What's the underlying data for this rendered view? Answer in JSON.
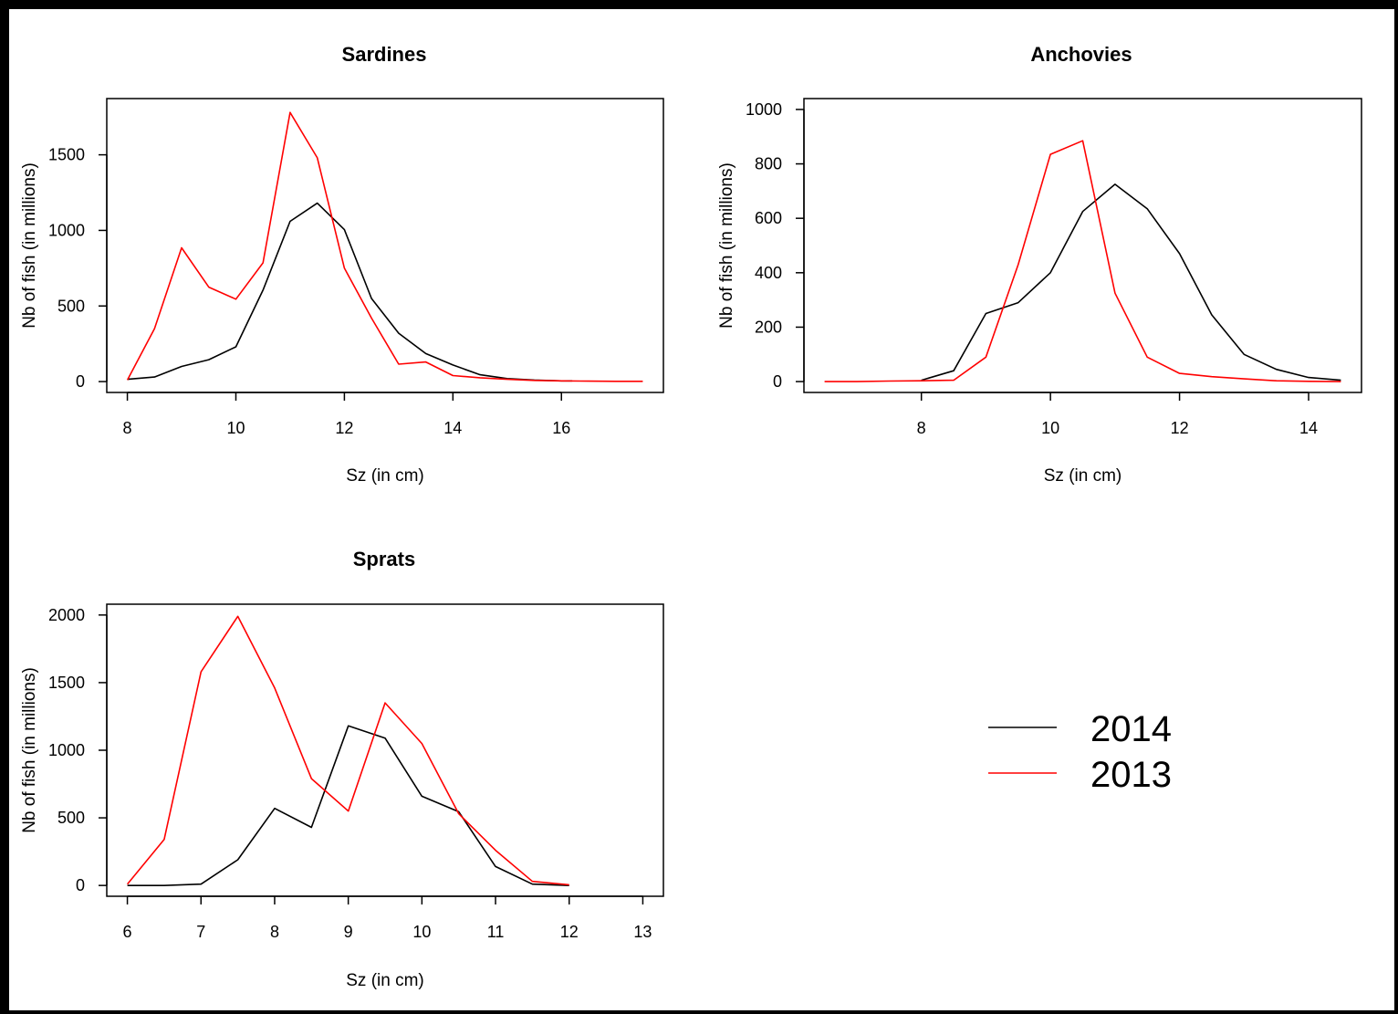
{
  "colors": {
    "2014": "#000000",
    "2013": "#ff0000"
  },
  "legend": {
    "placement": "bottom-right",
    "entries": [
      {
        "label": "2014",
        "color": "#000000"
      },
      {
        "label": "2013",
        "color": "#ff0000"
      }
    ]
  },
  "chart_data": [
    {
      "type": "line",
      "title": "Sardines",
      "xlabel": "Sz (in cm)",
      "ylabel": "Nb of fish (in millions)",
      "xlim": [
        8,
        17.5
      ],
      "ylim": [
        0,
        1800
      ],
      "xticks": [
        8,
        10,
        12,
        14,
        16
      ],
      "yticks": [
        0,
        500,
        1000,
        1500
      ],
      "series": [
        {
          "name": "2014",
          "color": "#000000",
          "x": [
            8,
            8.5,
            9,
            9.5,
            10,
            10.5,
            11,
            11.5,
            12,
            12.5,
            13,
            13.5,
            14,
            14.5,
            15,
            15.5,
            16,
            16.2
          ],
          "y": [
            15,
            30,
            100,
            145,
            230,
            605,
            1060,
            1180,
            1005,
            550,
            320,
            185,
            110,
            45,
            20,
            10,
            5,
            5
          ]
        },
        {
          "name": "2013",
          "color": "#ff0000",
          "x": [
            8,
            8.5,
            9,
            9.5,
            10,
            10.5,
            11,
            11.5,
            12,
            12.5,
            13,
            13.5,
            14,
            14.5,
            15,
            15.5,
            16,
            16.5,
            17,
            17.5
          ],
          "y": [
            10,
            350,
            885,
            625,
            545,
            785,
            1780,
            1480,
            750,
            420,
            115,
            130,
            40,
            25,
            15,
            8,
            5,
            3,
            2,
            2
          ]
        }
      ]
    },
    {
      "type": "line",
      "title": "Anchovies",
      "xlabel": "Sz (in cm)",
      "ylabel": "Nb of fish (in millions)",
      "xlim": [
        6.5,
        14.5
      ],
      "ylim": [
        0,
        1000
      ],
      "xticks": [
        8,
        10,
        12,
        14
      ],
      "yticks": [
        0,
        200,
        400,
        600,
        800,
        1000
      ],
      "series": [
        {
          "name": "2014",
          "color": "#000000",
          "x": [
            8,
            8.5,
            9,
            9.5,
            10,
            10.5,
            11,
            11.5,
            12,
            12.5,
            13,
            13.5,
            14,
            14.5
          ],
          "y": [
            5,
            40,
            250,
            290,
            400,
            625,
            725,
            635,
            470,
            245,
            100,
            45,
            15,
            5
          ]
        },
        {
          "name": "2013",
          "color": "#ff0000",
          "x": [
            6.5,
            7,
            7.5,
            8,
            8.5,
            9,
            9.5,
            10,
            10.5,
            11,
            11.5,
            12,
            12.5,
            13,
            13.5,
            14,
            14.5
          ],
          "y": [
            0,
            0,
            2,
            3,
            5,
            90,
            430,
            835,
            885,
            325,
            90,
            30,
            18,
            10,
            3,
            1,
            0
          ]
        }
      ]
    },
    {
      "type": "line",
      "title": "Sprats",
      "xlabel": "Sz (in cm)",
      "ylabel": "Nb of fish (in millions)",
      "xlim": [
        6,
        13
      ],
      "ylim": [
        0,
        2000
      ],
      "xticks": [
        6,
        7,
        8,
        9,
        10,
        11,
        12,
        13
      ],
      "yticks": [
        0,
        500,
        1000,
        1500,
        2000
      ],
      "series": [
        {
          "name": "2014",
          "color": "#000000",
          "x": [
            6,
            6.5,
            7,
            7.5,
            8,
            8.5,
            9,
            9.5,
            10,
            10.5,
            11,
            11.5,
            12
          ],
          "y": [
            0,
            0,
            10,
            190,
            570,
            430,
            1180,
            1090,
            660,
            545,
            140,
            10,
            0
          ]
        },
        {
          "name": "2013",
          "color": "#ff0000",
          "x": [
            6,
            6.5,
            7,
            7.5,
            8,
            8.5,
            9,
            9.5,
            10,
            10.5,
            11,
            11.5,
            12
          ],
          "y": [
            10,
            340,
            1580,
            1990,
            1460,
            790,
            550,
            1350,
            1050,
            530,
            260,
            30,
            5
          ]
        }
      ]
    }
  ]
}
